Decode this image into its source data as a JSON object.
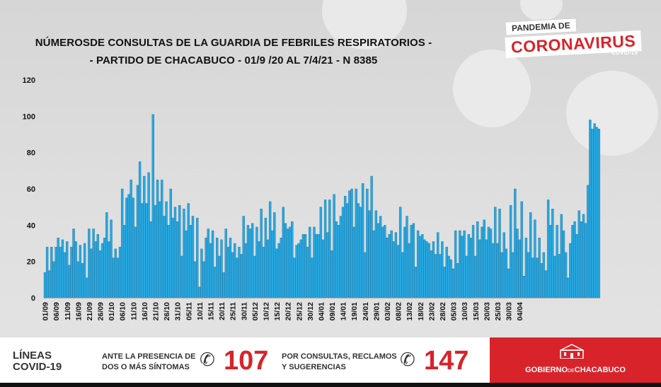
{
  "title_line1": "NÚMEROSDE CONSULTAS DE LA GUARDIA DE FEBRILES RESPIRATORIOS -",
  "title_line2": "- PARTIDO DE CHACABUCO -  01/9 /20 AL 7/4/21 - N 8385",
  "badge": {
    "top": "PANDEMIA DE",
    "main": "CORONAVIRUS",
    "sub": "COVID-19"
  },
  "footer": {
    "lineas_line1": "LÍNEAS",
    "lineas_line2": "COVID-19",
    "msg1_line1": "ANTE LA PRESENCIA DE",
    "msg1_line2": "DOS O MÁS SÍNTOMAS",
    "phone1": "107",
    "msg2_line1": "POR CONSULTAS, RECLAMOS",
    "msg2_line2": "Y SUGERENCIAS",
    "phone2": "147",
    "gob_a": "GOBIERNO",
    "gob_de": "DE",
    "gob_b": "CHACABUCO"
  },
  "colors": {
    "bar": "#29a8e0",
    "accent": "#d8232a"
  },
  "chart_data": {
    "type": "bar",
    "ylim": [
      0,
      120
    ],
    "yticks": [
      0,
      20,
      40,
      60,
      80,
      100,
      120
    ],
    "xtick_labels": [
      "01/09",
      "06/09",
      "11/09",
      "16/09",
      "21/09",
      "26/09",
      "01/10",
      "06/10",
      "11/10",
      "16/10",
      "21/10",
      "26/10",
      "31/10",
      "05/11",
      "10/11",
      "15/11",
      "20/11",
      "25/11",
      "30/11",
      "05/12",
      "10/12",
      "15/12",
      "20/12",
      "25/12",
      "30/12",
      "04/01",
      "09/01",
      "14/01",
      "19/01",
      "24/01",
      "29/01",
      "03/02",
      "08/02",
      "13/02",
      "18/02",
      "23/02",
      "28/02",
      "05/03",
      "10/03",
      "15/03",
      "20/03",
      "25/03",
      "30/03",
      "04/04"
    ],
    "values": [
      14,
      28,
      15,
      28,
      20,
      28,
      33,
      28,
      32,
      25,
      31,
      18,
      28,
      38,
      31,
      20,
      29,
      19,
      30,
      11,
      38,
      27,
      38,
      31,
      35,
      26,
      30,
      33,
      47,
      31,
      43,
      22,
      27,
      22,
      28,
      60,
      40,
      55,
      57,
      65,
      55,
      39,
      62,
      75,
      52,
      67,
      52,
      69,
      42,
      101,
      51,
      65,
      53,
      65,
      45,
      53,
      40,
      60,
      44,
      50,
      42,
      51,
      23,
      49,
      37,
      52,
      40,
      45,
      20,
      44,
      6,
      27,
      20,
      33,
      38,
      30,
      37,
      17,
      33,
      23,
      32,
      14,
      38,
      28,
      33,
      25,
      30,
      22,
      28,
      24,
      45,
      30,
      40,
      38,
      41,
      23,
      39,
      31,
      49,
      28,
      44,
      32,
      53,
      37,
      47,
      27,
      30,
      33,
      50,
      41,
      38,
      39,
      42,
      22,
      29,
      30,
      32,
      35,
      35,
      28,
      39,
      22,
      39,
      35,
      35,
      50,
      32,
      54,
      36,
      54,
      26,
      57,
      42,
      40,
      45,
      50,
      56,
      52,
      59,
      60,
      39,
      60,
      52,
      50,
      63,
      25,
      60,
      48,
      67,
      37,
      48,
      41,
      45,
      39,
      40,
      33,
      35,
      37,
      31,
      36,
      29,
      50,
      25,
      39,
      45,
      30,
      40,
      41,
      17,
      37,
      34,
      35,
      32,
      31,
      30,
      26,
      31,
      24,
      36,
      24,
      31,
      17,
      28,
      23,
      21,
      16,
      37,
      19,
      37,
      34,
      37,
      23,
      35,
      33,
      40,
      23,
      42,
      32,
      39,
      43,
      32,
      39,
      38,
      30,
      50,
      30,
      49,
      25,
      36,
      27,
      16,
      51,
      25,
      60,
      38,
      32,
      53,
      12,
      33,
      25,
      47,
      22,
      43,
      22,
      33,
      19,
      25,
      15,
      54,
      40,
      49,
      23,
      40,
      24,
      46,
      37,
      25,
      11,
      30,
      40,
      42,
      35,
      48,
      42,
      46,
      41,
      62,
      98,
      93,
      96,
      94,
      93
    ]
  }
}
